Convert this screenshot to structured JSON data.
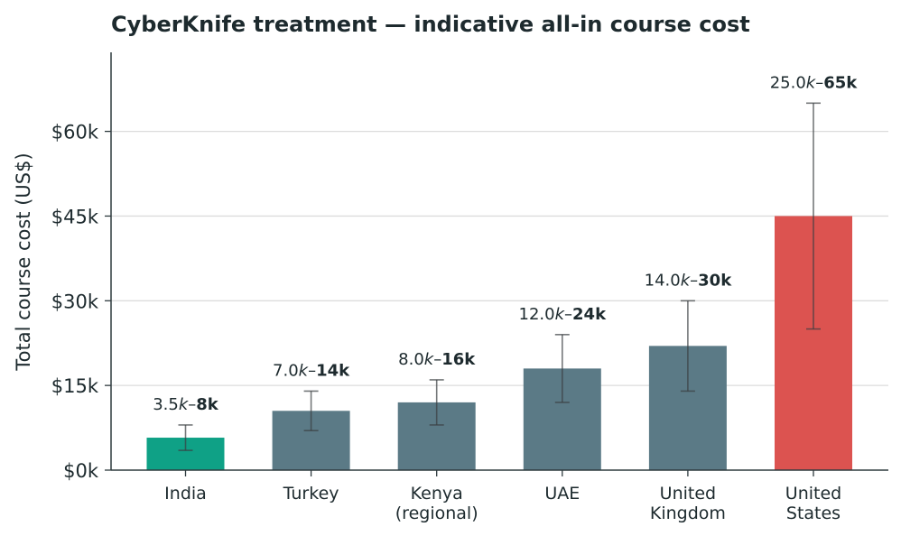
{
  "chart_data": {
    "type": "bar",
    "title": "CyberKnife treatment — indicative all-in course cost",
    "xlabel": "",
    "ylabel": "Total course cost (US$)",
    "ylim": [
      0,
      74000
    ],
    "yticks": [
      0,
      15000,
      30000,
      45000,
      60000
    ],
    "ytick_labels": [
      "$0k",
      "$15k",
      "$30k",
      "$45k",
      "$60k"
    ],
    "grid": "horizontal",
    "categories": [
      [
        "India"
      ],
      [
        "Turkey"
      ],
      [
        "Kenya",
        "(regional)"
      ],
      [
        "UAE"
      ],
      [
        "United",
        "Kingdom"
      ],
      [
        "United",
        "States"
      ]
    ],
    "values": [
      5750,
      10500,
      12000,
      18000,
      22000,
      45000
    ],
    "range_low": [
      3500,
      7000,
      8000,
      12000,
      14000,
      25000
    ],
    "range_high": [
      8000,
      14000,
      16000,
      24000,
      30000,
      65000
    ],
    "data_labels": [
      {
        "low": "3.5",
        "high": "8k"
      },
      {
        "low": "7.0",
        "high": "14k"
      },
      {
        "low": "8.0",
        "high": "16k"
      },
      {
        "low": "12.0",
        "high": "24k"
      },
      {
        "low": "14.0",
        "high": "30k"
      },
      {
        "low": "25.0",
        "high": "65k"
      }
    ],
    "colors": [
      "#0fa186",
      "#5b7a86",
      "#5b7a86",
      "#5b7a86",
      "#5b7a86",
      "#dc5350"
    ],
    "errorbar_color": "#3a3f42",
    "grid_color": "#dcdcdc",
    "axis_color": "#2f3b3f"
  }
}
